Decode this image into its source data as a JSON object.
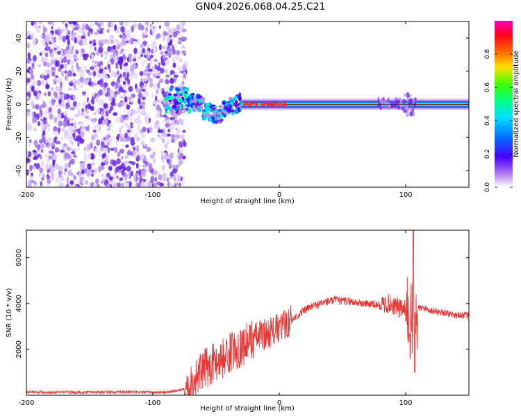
{
  "title": "GN04.2026.068.04.25.C21",
  "chart_data": [
    {
      "type": "heatmap",
      "title": "GN04.2026.068.04.25.C21",
      "xlabel": "Height of straight line (km)",
      "ylabel": "Frequency (Hz)",
      "xlim": [
        -200,
        150
      ],
      "ylim": [
        -50,
        50
      ],
      "x_ticks": [
        -200,
        -100,
        0,
        100
      ],
      "y_ticks": [
        -40,
        -20,
        0,
        20,
        40
      ],
      "colorbar": {
        "label": "Normalized spectral amplitude",
        "range": [
          0,
          1
        ],
        "ticks": [
          0.0,
          0.2,
          0.4,
          0.6,
          0.8
        ]
      },
      "regions": [
        {
          "name": "broadband noise",
          "x_range": [
            -200,
            -78
          ],
          "freq_range": [
            -50,
            50
          ],
          "amplitude": [
            0.0,
            0.15
          ]
        },
        {
          "name": "signal onset (scattered)",
          "x_range": [
            -90,
            -30
          ],
          "freq_range": [
            -12,
            12
          ],
          "amplitude": [
            0.1,
            0.45
          ]
        },
        {
          "name": "narrowband signal",
          "x_range": [
            -30,
            150
          ],
          "freq_range": [
            -2,
            2
          ],
          "amplitude": [
            0.4,
            1.0
          ]
        },
        {
          "name": "disturbance",
          "x_range": [
            78,
            108
          ],
          "freq_range": [
            -6,
            6
          ],
          "amplitude": [
            0.1,
            0.5
          ]
        }
      ]
    },
    {
      "type": "line",
      "xlabel": "Height of straight line (km)",
      "ylabel": "SNR (10 * v/v)",
      "xlim": [
        -200,
        150
      ],
      "ylim": [
        0,
        7200
      ],
      "x_ticks": [
        -200,
        -100,
        0,
        100
      ],
      "y_ticks": [
        2000,
        4000,
        6000
      ],
      "color": "#ee3333",
      "series": [
        {
          "name": "SNR",
          "x": [
            -200,
            -190,
            -180,
            -170,
            -160,
            -150,
            -140,
            -130,
            -120,
            -110,
            -100,
            -90,
            -80,
            -75,
            -70,
            -65,
            -60,
            -55,
            -50,
            -45,
            -40,
            -35,
            -30,
            -25,
            -20,
            -15,
            -10,
            -5,
            0,
            5,
            10,
            15,
            20,
            25,
            30,
            35,
            40,
            45,
            50,
            55,
            60,
            65,
            70,
            75,
            80,
            85,
            90,
            95,
            100,
            103,
            106,
            108,
            110,
            115,
            120,
            125,
            130,
            135,
            140,
            145,
            150
          ],
          "values": [
            150,
            140,
            130,
            140,
            120,
            130,
            140,
            130,
            140,
            130,
            120,
            130,
            200,
            300,
            450,
            800,
            1100,
            1300,
            1500,
            1600,
            1800,
            2000,
            2100,
            2300,
            2500,
            2600,
            2700,
            2800,
            2900,
            3100,
            3300,
            3500,
            3700,
            3850,
            3950,
            4050,
            4100,
            4150,
            4100,
            4100,
            4050,
            4000,
            4000,
            3950,
            3900,
            4000,
            3950,
            3800,
            3700,
            3300,
            3000,
            3100,
            3800,
            3800,
            3700,
            3650,
            3600,
            3550,
            3500,
            3500,
            3450
          ]
        }
      ],
      "annotations": [
        {
          "text": "spike to ~7200 near 106 km",
          "x": 106,
          "y": 7200
        },
        {
          "text": "dip to ~1000 near 107 km",
          "x": 107,
          "y": 1000
        }
      ]
    }
  ]
}
